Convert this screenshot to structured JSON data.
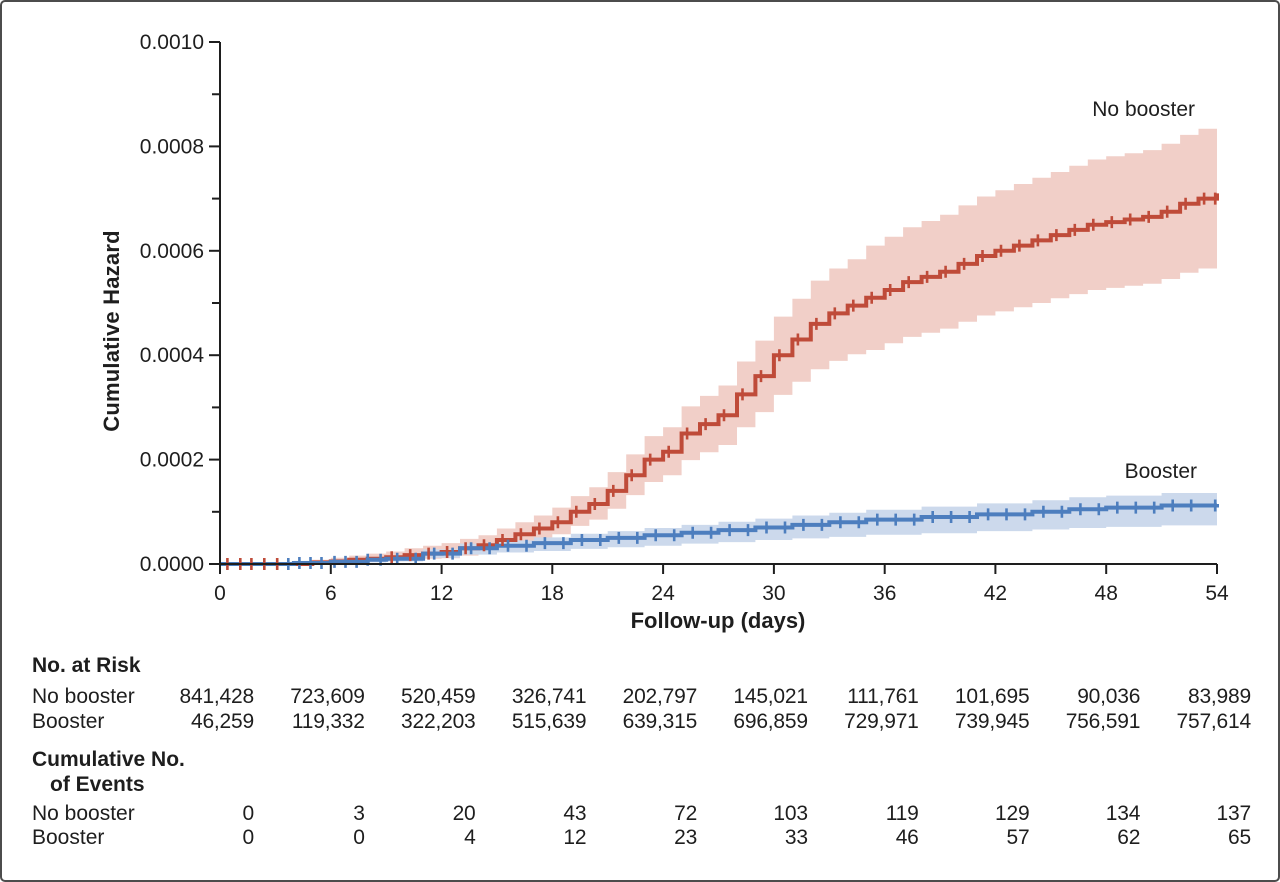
{
  "colors": {
    "axis": "#1e1e1e",
    "text": "#1e1e1e",
    "frame_border": "#4c4c4c",
    "no_booster_line": "#bf4b39",
    "no_booster_band": "#f1cfc8",
    "booster_line": "#4d7ebe",
    "booster_band": "#ccd9ec"
  },
  "chart_data": {
    "type": "line",
    "subtype": "kaplan-meier-cumulative-hazard-step-curves-with-confidence-bands",
    "title": "",
    "xlabel": "Follow-up (days)",
    "ylabel": "Cumulative Hazard",
    "xlim": [
      0,
      54
    ],
    "ylim": [
      0,
      0.001
    ],
    "x_ticks": [
      "0",
      "6",
      "12",
      "18",
      "24",
      "30",
      "36",
      "42",
      "48",
      "54"
    ],
    "y_ticks": [
      "0.0000",
      "0.0002",
      "0.0004",
      "0.0006",
      "0.0008",
      "0.0010"
    ],
    "y_minor_ticks_e4": [
      1,
      3,
      5,
      7,
      9
    ],
    "value_scale": 0.0001,
    "grid": false,
    "legend_position": "curve-end-labels",
    "series": [
      {
        "name": "No booster",
        "color": "#bf4b39",
        "band_color": "#f1cfc8",
        "points_e4": [
          [
            0,
            0
          ],
          [
            5,
            0.03
          ],
          [
            6,
            0.05
          ],
          [
            7,
            0.08
          ],
          [
            8,
            0.1
          ],
          [
            9,
            0.13
          ],
          [
            10,
            0.17
          ],
          [
            11,
            0.2
          ],
          [
            12,
            0.23
          ],
          [
            13,
            0.3
          ],
          [
            14,
            0.36
          ],
          [
            15,
            0.46
          ],
          [
            16,
            0.57
          ],
          [
            17,
            0.68
          ],
          [
            18,
            0.8
          ],
          [
            19,
            1.0
          ],
          [
            20,
            1.15
          ],
          [
            21,
            1.4
          ],
          [
            22,
            1.7
          ],
          [
            23,
            2.0
          ],
          [
            24,
            2.15
          ],
          [
            25,
            2.5
          ],
          [
            26,
            2.68
          ],
          [
            27,
            2.85
          ],
          [
            28,
            3.25
          ],
          [
            29,
            3.6
          ],
          [
            30,
            4.0
          ],
          [
            31,
            4.3
          ],
          [
            32,
            4.6
          ],
          [
            33,
            4.8
          ],
          [
            34,
            4.95
          ],
          [
            35,
            5.1
          ],
          [
            36,
            5.25
          ],
          [
            37,
            5.4
          ],
          [
            38,
            5.5
          ],
          [
            39,
            5.6
          ],
          [
            40,
            5.75
          ],
          [
            41,
            5.9
          ],
          [
            42,
            6.0
          ],
          [
            43,
            6.1
          ],
          [
            44,
            6.2
          ],
          [
            45,
            6.3
          ],
          [
            46,
            6.4
          ],
          [
            47,
            6.5
          ],
          [
            48,
            6.55
          ],
          [
            49,
            6.6
          ],
          [
            50,
            6.65
          ],
          [
            51,
            6.75
          ],
          [
            52,
            6.9
          ],
          [
            53,
            7.0
          ],
          [
            54,
            7.1
          ]
        ],
        "upper_e4": [
          0,
          0.08,
          0.12,
          0.16,
          0.2,
          0.24,
          0.3,
          0.35,
          0.4,
          0.48,
          0.55,
          0.68,
          0.8,
          0.93,
          1.08,
          1.3,
          1.47,
          1.76,
          2.1,
          2.45,
          2.62,
          3.02,
          3.22,
          3.42,
          3.88,
          4.28,
          4.74,
          5.08,
          5.43,
          5.66,
          5.84,
          6.1,
          6.27,
          6.45,
          6.57,
          6.69,
          6.87,
          7.04,
          7.16,
          7.28,
          7.4,
          7.51,
          7.63,
          7.75,
          7.81,
          7.87,
          7.93,
          8.05,
          8.22,
          8.34,
          8.46
        ],
        "lower_e4": [
          0,
          0.01,
          0.02,
          0.03,
          0.04,
          0.05,
          0.08,
          0.1,
          0.11,
          0.16,
          0.2,
          0.28,
          0.37,
          0.46,
          0.57,
          0.73,
          0.85,
          1.06,
          1.32,
          1.57,
          1.7,
          1.99,
          2.14,
          2.28,
          2.62,
          2.91,
          3.24,
          3.49,
          3.73,
          3.89,
          4.02,
          4.1,
          4.23,
          4.35,
          4.43,
          4.51,
          4.64,
          4.76,
          4.84,
          4.92,
          5.0,
          5.09,
          5.17,
          5.25,
          5.29,
          5.33,
          5.37,
          5.46,
          5.58,
          5.66,
          5.74
        ],
        "censor_days": [
          0.4,
          1.1,
          1.7,
          2.4,
          3.1,
          9.3,
          10.3,
          11.3,
          12.3,
          13.3,
          14.3,
          15.3,
          16.3,
          17.3,
          18.3,
          19.3,
          20.3,
          21.3,
          22.3,
          23.3,
          24.3,
          25.3,
          26.3,
          27.3,
          28.3,
          29.3,
          30.3,
          31.3,
          32.3,
          33.3,
          34.3,
          35.3,
          36.3,
          37.3,
          38.3,
          39.3,
          40.3,
          41.3,
          42.3,
          43.3,
          44.3,
          45.3,
          46.3,
          47.3,
          48.3,
          49.3,
          50.3,
          51.3,
          52.3,
          53.3,
          53.9
        ]
      },
      {
        "name": "Booster",
        "color": "#4d7ebe",
        "band_color": "#ccd9ec",
        "points_e4": [
          [
            0,
            0
          ],
          [
            4,
            0.02
          ],
          [
            6,
            0.04
          ],
          [
            8,
            0.08
          ],
          [
            9,
            0.1
          ],
          [
            11,
            0.2
          ],
          [
            13,
            0.3
          ],
          [
            15,
            0.35
          ],
          [
            17,
            0.4
          ],
          [
            19,
            0.46
          ],
          [
            21,
            0.5
          ],
          [
            23,
            0.55
          ],
          [
            25,
            0.6
          ],
          [
            27,
            0.65
          ],
          [
            29,
            0.7
          ],
          [
            31,
            0.75
          ],
          [
            33,
            0.8
          ],
          [
            35,
            0.85
          ],
          [
            38,
            0.9
          ],
          [
            41,
            0.95
          ],
          [
            44,
            1.0
          ],
          [
            46,
            1.05
          ],
          [
            48,
            1.08
          ],
          [
            51,
            1.12
          ],
          [
            54,
            1.15
          ]
        ],
        "upper_e4": [
          0,
          0.06,
          0.09,
          0.13,
          0.16,
          0.28,
          0.39,
          0.45,
          0.51,
          0.58,
          0.63,
          0.69,
          0.75,
          0.81,
          0.87,
          0.93,
          0.98,
          1.04,
          1.1,
          1.16,
          1.22,
          1.28,
          1.31,
          1.36,
          1.4
        ],
        "lower_e4": [
          0,
          0,
          0.01,
          0.03,
          0.05,
          0.12,
          0.18,
          0.22,
          0.25,
          0.29,
          0.32,
          0.35,
          0.39,
          0.42,
          0.46,
          0.49,
          0.52,
          0.56,
          0.59,
          0.63,
          0.66,
          0.69,
          0.71,
          0.74,
          0.76
        ],
        "censor_days": [
          3.7,
          4.3,
          4.9,
          5.5,
          6.2,
          6.8,
          7.4,
          8.0,
          8.7,
          9.6,
          10.6,
          11.6,
          12.6,
          13.6,
          14.6,
          15.6,
          16.6,
          17.6,
          18.6,
          19.6,
          20.6,
          21.6,
          22.6,
          23.6,
          24.6,
          25.6,
          26.6,
          27.6,
          28.6,
          29.6,
          30.6,
          31.6,
          32.6,
          33.6,
          34.6,
          35.6,
          36.6,
          37.6,
          38.6,
          39.6,
          40.6,
          41.6,
          42.6,
          43.6,
          44.6,
          45.6,
          46.6,
          47.6,
          48.6,
          49.6,
          50.6,
          51.6,
          52.6,
          53.9
        ]
      }
    ]
  },
  "risk_table": {
    "header": "No. at Risk",
    "rows": [
      {
        "label": "No booster",
        "values": [
          "841,428",
          "723,609",
          "520,459",
          "326,741",
          "202,797",
          "145,021",
          "111,761",
          "101,695",
          "90,036",
          "83,989"
        ]
      },
      {
        "label": "Booster",
        "values": [
          "46,259",
          "119,332",
          "322,203",
          "515,639",
          "639,315",
          "696,859",
          "729,971",
          "739,945",
          "756,591",
          "757,614"
        ]
      }
    ],
    "events_header_line1": "Cumulative No.",
    "events_header_line2": "of Events",
    "events_rows": [
      {
        "label": "No booster",
        "values": [
          "0",
          "3",
          "20",
          "43",
          "72",
          "103",
          "119",
          "129",
          "134",
          "137"
        ]
      },
      {
        "label": "Booster",
        "values": [
          "0",
          "0",
          "4",
          "12",
          "23",
          "33",
          "46",
          "57",
          "62",
          "65"
        ]
      }
    ]
  }
}
